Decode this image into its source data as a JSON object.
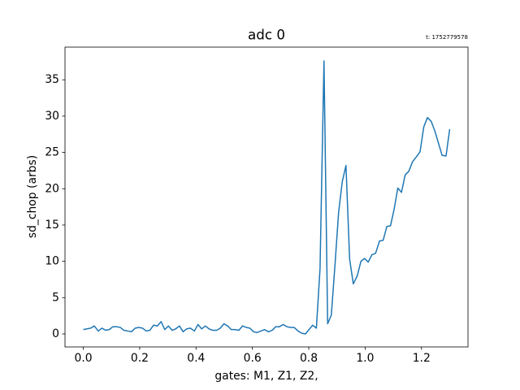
{
  "chart_data": {
    "type": "line",
    "title": "adc 0",
    "annotation": "t: 1752779578",
    "x_label": "gates: M1, Z1, Z2,",
    "y_label": "sd_chop (arbs)",
    "x": [
      0.0,
      0.013,
      0.026,
      0.039,
      0.053,
      0.066,
      0.079,
      0.092,
      0.105,
      0.118,
      0.131,
      0.144,
      0.158,
      0.171,
      0.184,
      0.197,
      0.21,
      0.223,
      0.236,
      0.249,
      0.263,
      0.276,
      0.289,
      0.302,
      0.315,
      0.328,
      0.341,
      0.354,
      0.367,
      0.38,
      0.394,
      0.407,
      0.42,
      0.433,
      0.446,
      0.459,
      0.473,
      0.486,
      0.499,
      0.512,
      0.525,
      0.538,
      0.552,
      0.565,
      0.578,
      0.591,
      0.604,
      0.617,
      0.63,
      0.643,
      0.657,
      0.67,
      0.683,
      0.696,
      0.709,
      0.722,
      0.735,
      0.748,
      0.762,
      0.775,
      0.788,
      0.801,
      0.814,
      0.827,
      0.84,
      0.854,
      0.867,
      0.88,
      0.893,
      0.906,
      0.919,
      0.932,
      0.945,
      0.958,
      0.972,
      0.985,
      0.998,
      1.011,
      1.024,
      1.037,
      1.051,
      1.064,
      1.077,
      1.09,
      1.103,
      1.116,
      1.129,
      1.142,
      1.155,
      1.168,
      1.182,
      1.195,
      1.208,
      1.221,
      1.234,
      1.247,
      1.26,
      1.273,
      1.287,
      1.3
    ],
    "series": [
      {
        "color": "#1f77b4",
        "values": [
          0.6,
          0.7,
          0.8,
          1.1,
          0.4,
          0.8,
          0.5,
          0.6,
          1.0,
          1.0,
          0.9,
          0.5,
          0.4,
          0.3,
          0.8,
          0.9,
          0.8,
          0.4,
          0.5,
          1.2,
          1.1,
          1.7,
          0.6,
          1.1,
          0.5,
          0.7,
          1.1,
          0.3,
          0.7,
          0.8,
          0.4,
          1.3,
          0.7,
          1.1,
          0.7,
          0.5,
          0.5,
          0.8,
          1.4,
          1.1,
          0.6,
          0.6,
          0.5,
          1.1,
          0.9,
          0.8,
          0.3,
          0.2,
          0.4,
          0.6,
          0.3,
          0.5,
          1.0,
          1.0,
          1.3,
          1.0,
          0.9,
          0.9,
          0.4,
          0.1,
          0.0,
          0.6,
          1.2,
          0.8,
          9.0,
          37.6,
          1.4,
          2.6,
          9.5,
          16.8,
          21.0,
          23.2,
          10.3,
          6.9,
          8.0,
          10.0,
          10.4,
          9.9,
          10.9,
          11.1,
          12.8,
          12.9,
          14.8,
          14.9,
          17.2,
          20.1,
          19.5,
          21.9,
          22.4,
          23.7,
          24.4,
          25.1,
          28.5,
          29.8,
          29.3,
          28.0,
          26.3,
          24.6,
          24.5,
          28.2
        ]
      }
    ],
    "xlim": [
      -0.065,
      1.365
    ],
    "ylim": [
      -1.79,
      39.5
    ],
    "xticks": [
      {
        "value": 0,
        "label": "0.0"
      },
      0.2,
      0.4,
      0.6,
      0.8,
      {
        "value": 1,
        "label": "1.0"
      },
      1.2
    ],
    "yticks": [
      0,
      5,
      10,
      15,
      20,
      25,
      30,
      35
    ],
    "grid": false
  }
}
